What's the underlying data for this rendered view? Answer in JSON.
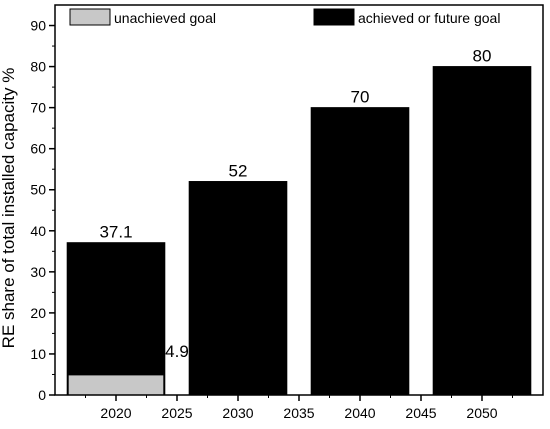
{
  "chart_data": {
    "type": "bar",
    "ylabel": "RE share of total installed capacity %",
    "xlabel": "",
    "ylim": [
      0,
      95
    ],
    "x_ticks": [
      2020,
      2025,
      2030,
      2035,
      2040,
      2045,
      2050
    ],
    "y_ticks": [
      0,
      10,
      20,
      30,
      40,
      50,
      60,
      70,
      80,
      90
    ],
    "grid": false,
    "legend_position": "top",
    "legend": [
      {
        "label": "unachieved goal",
        "color": "#c8c8c8"
      },
      {
        "label": "achieved or future goal",
        "color": "#000000"
      }
    ],
    "bars": [
      {
        "x": 2020,
        "value": 37.1,
        "label": "37.1",
        "color": "#000000"
      },
      {
        "x": 2030,
        "value": 52,
        "label": "52",
        "color": "#000000"
      },
      {
        "x": 2040,
        "value": 70,
        "label": "70",
        "color": "#000000"
      },
      {
        "x": 2050,
        "value": 80,
        "label": "80",
        "color": "#000000"
      }
    ],
    "overlay_bars": [
      {
        "x": 2020,
        "value": 4.9,
        "color": "#c8c8c8"
      }
    ],
    "annotations": [
      {
        "x": 2025,
        "y": 4.9,
        "text": "4.9"
      }
    ]
  }
}
